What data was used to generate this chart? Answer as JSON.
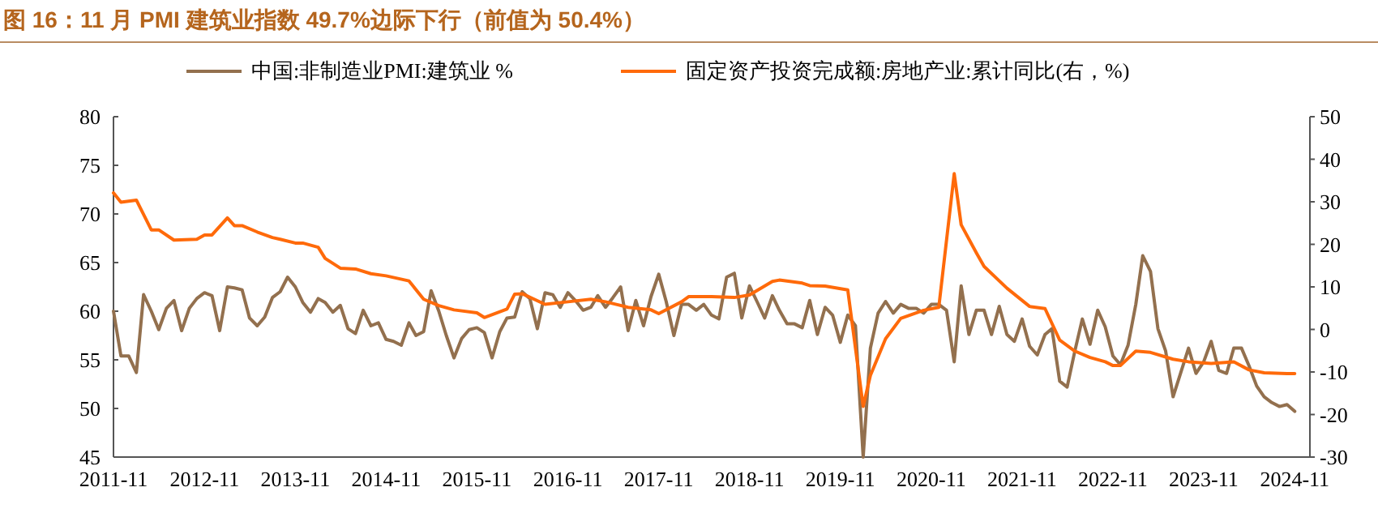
{
  "chart_data": {
    "type": "line",
    "title": "图 16：11 月 PMI 建筑业指数 49.7%边际下行（前值为 50.4%）",
    "x": [
      "2011-11",
      "2011-12",
      "2012-01",
      "2012-02",
      "2012-03",
      "2012-04",
      "2012-05",
      "2012-06",
      "2012-07",
      "2012-08",
      "2012-09",
      "2012-10",
      "2012-11",
      "2012-12",
      "2013-01",
      "2013-02",
      "2013-03",
      "2013-04",
      "2013-05",
      "2013-06",
      "2013-07",
      "2013-08",
      "2013-09",
      "2013-10",
      "2013-11",
      "2013-12",
      "2014-01",
      "2014-02",
      "2014-03",
      "2014-04",
      "2014-05",
      "2014-06",
      "2014-07",
      "2014-08",
      "2014-09",
      "2014-10",
      "2014-11",
      "2014-12",
      "2015-01",
      "2015-02",
      "2015-03",
      "2015-04",
      "2015-05",
      "2015-06",
      "2015-07",
      "2015-08",
      "2015-09",
      "2015-10",
      "2015-11",
      "2015-12",
      "2016-01",
      "2016-02",
      "2016-03",
      "2016-04",
      "2016-05",
      "2016-06",
      "2016-07",
      "2016-08",
      "2016-09",
      "2016-10",
      "2016-11",
      "2016-12",
      "2017-01",
      "2017-02",
      "2017-03",
      "2017-04",
      "2017-05",
      "2017-06",
      "2017-07",
      "2017-08",
      "2017-09",
      "2017-10",
      "2017-11",
      "2017-12",
      "2018-01",
      "2018-02",
      "2018-03",
      "2018-04",
      "2018-05",
      "2018-06",
      "2018-07",
      "2018-08",
      "2018-09",
      "2018-10",
      "2018-11",
      "2018-12",
      "2019-01",
      "2019-02",
      "2019-03",
      "2019-04",
      "2019-05",
      "2019-06",
      "2019-07",
      "2019-08",
      "2019-09",
      "2019-10",
      "2019-11",
      "2019-12",
      "2020-01",
      "2020-02",
      "2020-03",
      "2020-04",
      "2020-05",
      "2020-06",
      "2020-07",
      "2020-08",
      "2020-09",
      "2020-10",
      "2020-11",
      "2020-12",
      "2021-01",
      "2021-02",
      "2021-03",
      "2021-04",
      "2021-05",
      "2021-06",
      "2021-07",
      "2021-08",
      "2021-09",
      "2021-10",
      "2021-11",
      "2021-12",
      "2022-01",
      "2022-02",
      "2022-03",
      "2022-04",
      "2022-05",
      "2022-06",
      "2022-07",
      "2022-08",
      "2022-09",
      "2022-10",
      "2022-11",
      "2022-12",
      "2023-01",
      "2023-02",
      "2023-03",
      "2023-04",
      "2023-05",
      "2023-06",
      "2023-07",
      "2023-08",
      "2023-09",
      "2023-10",
      "2023-11",
      "2023-12",
      "2024-01",
      "2024-02",
      "2024-03",
      "2024-04",
      "2024-05",
      "2024-06",
      "2024-07",
      "2024-08",
      "2024-09",
      "2024-10",
      "2024-11"
    ],
    "series": [
      {
        "name": "中国:非制造业PMI:建筑业 %",
        "color": "#93704e",
        "values": [
          60,
          55.4,
          55.4,
          53.7,
          61.7,
          60,
          58.1,
          60.3,
          61.1,
          58,
          60.3,
          61.3,
          61.9,
          61.6,
          58,
          62.5,
          62.4,
          62.2,
          59.3,
          58.5,
          59.4,
          61.4,
          62,
          63.5,
          62.5,
          60.9,
          59.9,
          61.3,
          60.9,
          59.9,
          60.6,
          58.2,
          57.7,
          60.1,
          58.5,
          58.8,
          57.1,
          56.9,
          56.5,
          58.8,
          57.5,
          57.9,
          62.1,
          60,
          57.5,
          55.2,
          57.2,
          58.1,
          58.3,
          57.8,
          55.2,
          57.9,
          59.3,
          59.4,
          62,
          61.3,
          58.2,
          61.9,
          61.7,
          60.4,
          61.9,
          61.1,
          60.1,
          60.4,
          61.6,
          60.4,
          61.4,
          62.5,
          58,
          61.1,
          58.5,
          61.5,
          63.8,
          61,
          57.5,
          60.7,
          60.7,
          60.1,
          60.7,
          59.6,
          59.2,
          63.5,
          63.9,
          59.3,
          62.6,
          61,
          59.3,
          61.6,
          60.1,
          58.7,
          58.7,
          58.3,
          61.1,
          57.6,
          60.4,
          59.6,
          56.8,
          59.6,
          58.5,
          45,
          56.2,
          59.8,
          61,
          59.8,
          60.7,
          60.3,
          60.3,
          59.8,
          60.7,
          60.7,
          60.1,
          54.8,
          62.6,
          57.6,
          60.1,
          60.1,
          57.6,
          60.5,
          57.6,
          56.9,
          59.2,
          56.4,
          55.5,
          57.6,
          58.2,
          52.8,
          52.2,
          55.9,
          59.2,
          56.6,
          60.1,
          58.4,
          55.4,
          54.5,
          56.5,
          60.7,
          65.7,
          64.1,
          58.2,
          55.9,
          51.2,
          53.7,
          56.2,
          53.6,
          54.8,
          56.9,
          53.9,
          53.6,
          56.2,
          56.2,
          54.4,
          52.3,
          51.2,
          50.6,
          50.2,
          50.4,
          49.7
        ]
      },
      {
        "name": "固定资产投资完成额:房地产业:累计同比(右，%)",
        "color": "#ff6a0a",
        "axis": "y2",
        "x": [
          "2011-11",
          "2011-12",
          "2012-02",
          "2012-04",
          "2012-05",
          "2012-07",
          "2012-10",
          "2012-11",
          "2012-12",
          "2013-02",
          "2013-03",
          "2013-04",
          "2013-06",
          "2013-08",
          "2013-09",
          "2013-11",
          "2013-12",
          "2014-02",
          "2014-03",
          "2014-05",
          "2014-07",
          "2014-09",
          "2014-11",
          "2015-02",
          "2015-04",
          "2015-06",
          "2015-08",
          "2015-11",
          "2015-12",
          "2016-03",
          "2016-04",
          "2016-05",
          "2016-08",
          "2016-11",
          "2017-02",
          "2017-04",
          "2017-07",
          "2017-10",
          "2017-11",
          "2018-02",
          "2018-03",
          "2018-06",
          "2018-09",
          "2018-11",
          "2019-02",
          "2019-03",
          "2019-06",
          "2019-07",
          "2019-09",
          "2019-12",
          "2020-02",
          "2020-03",
          "2020-05",
          "2020-07",
          "2020-10",
          "2020-12",
          "2021-02",
          "2021-03",
          "2021-05",
          "2021-06",
          "2021-09",
          "2021-12",
          "2022-02",
          "2022-04",
          "2022-06",
          "2022-08",
          "2022-10",
          "2022-11",
          "2022-12",
          "2023-02",
          "2023-04",
          "2023-07",
          "2023-09",
          "2023-12",
          "2024-03",
          "2024-05",
          "2024-07",
          "2024-10",
          "2024-11"
        ],
        "values": [
          32.1,
          29.9,
          30.4,
          23.4,
          23.4,
          21,
          21.2,
          22.2,
          22.2,
          26.2,
          24.4,
          24.4,
          22.9,
          21.6,
          21.2,
          20.3,
          20.3,
          19.3,
          16.7,
          14.4,
          14.2,
          13.1,
          12.6,
          11.4,
          7.1,
          5.6,
          4.6,
          3.9,
          2.8,
          4.8,
          8.3,
          8.4,
          5.9,
          6.5,
          7.1,
          6.5,
          5.2,
          4.6,
          3.7,
          6.5,
          7.7,
          7.7,
          7.5,
          8.1,
          11.3,
          11.6,
          10.9,
          10.3,
          10.2,
          9.3,
          -18.1,
          -10.8,
          -2.2,
          2.6,
          4.5,
          5.2,
          36.6,
          24.6,
          18,
          14.8,
          9.7,
          5.4,
          4.9,
          -2.5,
          -5.1,
          -6.6,
          -7.6,
          -8.5,
          -8.5,
          -5.1,
          -5.4,
          -7,
          -7.6,
          -8,
          -7.6,
          -9.5,
          -10.2,
          -10.4,
          -10.4
        ]
      }
    ],
    "xlim": [
      "2011-11",
      "2025-01"
    ],
    "xticks": [
      "2011-11",
      "2012-11",
      "2013-11",
      "2014-11",
      "2015-11",
      "2016-11",
      "2017-11",
      "2018-11",
      "2019-11",
      "2020-11",
      "2021-11",
      "2022-11",
      "2023-11",
      "2024-11"
    ],
    "ylim": [
      45,
      80
    ],
    "yticks": [
      45,
      50,
      55,
      60,
      65,
      70,
      75,
      80
    ],
    "y2lim": [
      -30,
      50
    ],
    "y2ticks": [
      -30,
      -20,
      -10,
      0,
      10,
      20,
      30,
      40,
      50
    ],
    "legend": "top",
    "grid": false
  }
}
